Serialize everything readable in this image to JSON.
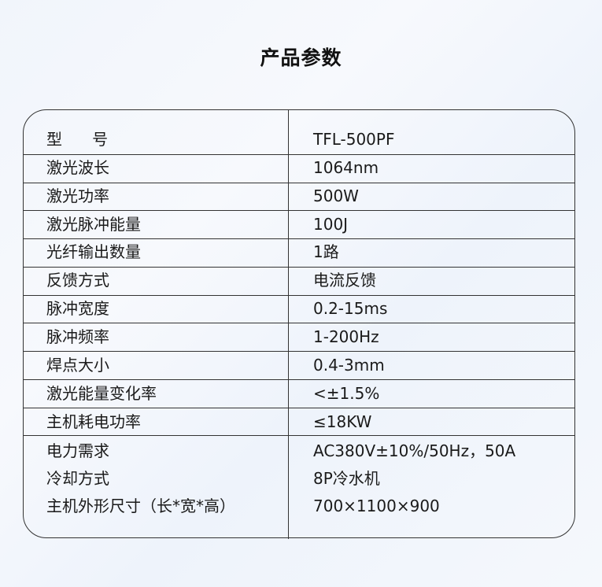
{
  "title": "产品参数",
  "rows": [
    {
      "label": "型      号",
      "value": "TFL-500PF"
    },
    {
      "label": "激光波长",
      "value": "1064nm"
    },
    {
      "label": "激光功率",
      "value": "500W"
    },
    {
      "label": "激光脉冲能量",
      "value": "100J"
    },
    {
      "label": "光纤输出数量",
      "value": "1路"
    },
    {
      "label": "反馈方式",
      "value": "电流反馈"
    },
    {
      "label": "脉冲宽度",
      "value": "0.2-15ms"
    },
    {
      "label": "脉冲频率",
      "value": "1-200Hz"
    },
    {
      "label": "焊点大小",
      "value": "0.4-3mm"
    },
    {
      "label": "激光能量变化率",
      "value": "<±1.5%"
    },
    {
      "label": "主机耗电功率",
      "value": "≤18KW"
    },
    {
      "label": "电力需求",
      "value": "AC380V±10%/50Hz，50A"
    },
    {
      "label": "冷却方式",
      "value": "8P冷水机"
    },
    {
      "label": "主机外形尺寸（长*宽*高）",
      "value": "700×1100×900"
    }
  ]
}
